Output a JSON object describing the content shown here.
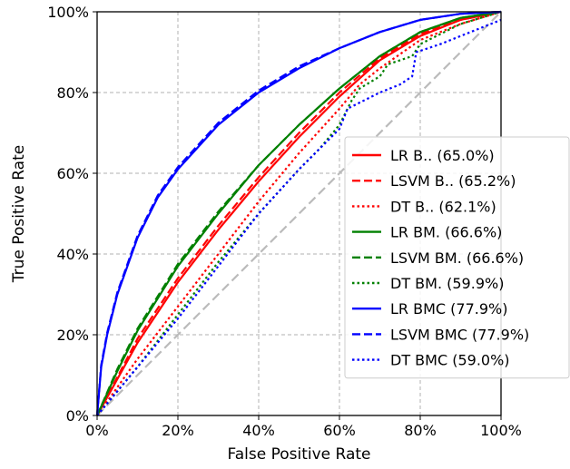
{
  "chart_data": {
    "type": "line",
    "title": "",
    "xlabel": "False Positive Rate",
    "ylabel": "True Positive Rate",
    "xlim": [
      0,
      100
    ],
    "ylim": [
      0,
      100
    ],
    "x_ticks": [
      "0%",
      "20%",
      "40%",
      "60%",
      "80%",
      "100%"
    ],
    "y_ticks": [
      "0%",
      "20%",
      "40%",
      "60%",
      "80%",
      "100%"
    ],
    "grid": true,
    "legend_position": "right",
    "diagonal": {
      "x": [
        0,
        100
      ],
      "y": [
        0,
        100
      ],
      "color": "#bbbbbb",
      "style": "dashed"
    },
    "series": [
      {
        "name": "LR B.. (65.0%)",
        "color": "#ff0000",
        "style": "solid",
        "x": [
          0,
          5,
          10,
          20,
          30,
          40,
          50,
          60,
          70,
          80,
          90,
          100
        ],
        "y": [
          0,
          9,
          18,
          33,
          46,
          58,
          69,
          79,
          88,
          94,
          98,
          100
        ]
      },
      {
        "name": "LSVM B.. (65.2%)",
        "color": "#ff0000",
        "style": "dashed",
        "x": [
          0,
          5,
          10,
          20,
          30,
          40,
          50,
          60,
          70,
          80,
          90,
          100
        ],
        "y": [
          0,
          9.5,
          19,
          34,
          47,
          59,
          70,
          80,
          88.5,
          94.5,
          98,
          100
        ]
      },
      {
        "name": "DT B.. (62.1%)",
        "color": "#ff0000",
        "style": "dotted",
        "x": [
          0,
          5,
          10,
          20,
          30,
          40,
          50,
          60,
          65,
          70,
          80,
          90,
          100
        ],
        "y": [
          0,
          7,
          14,
          27,
          40,
          53,
          65,
          76,
          82,
          86,
          93,
          97,
          100
        ]
      },
      {
        "name": "LR BM. (66.6%)",
        "color": "#008000",
        "style": "solid",
        "x": [
          0,
          5,
          10,
          20,
          30,
          40,
          50,
          60,
          70,
          80,
          90,
          100
        ],
        "y": [
          0,
          11,
          21,
          37,
          50,
          62,
          72,
          81,
          89,
          95,
          98.5,
          100
        ]
      },
      {
        "name": "LSVM BM. (66.6%)",
        "color": "#008000",
        "style": "dashed",
        "x": [
          0,
          5,
          10,
          20,
          30,
          40,
          50,
          60,
          70,
          80,
          90,
          100
        ],
        "y": [
          0,
          11.5,
          21.5,
          37.5,
          50.5,
          62,
          72,
          81,
          89,
          95,
          98.5,
          100
        ]
      },
      {
        "name": "DT BM. (59.9%)",
        "color": "#008000",
        "style": "dotted",
        "x": [
          0,
          5,
          10,
          20,
          30,
          40,
          50,
          55,
          60,
          63,
          65,
          70,
          72,
          75,
          78,
          80,
          90,
          100
        ],
        "y": [
          0,
          6,
          12,
          25,
          38,
          50,
          61,
          66,
          72,
          78,
          81,
          84,
          87,
          88,
          89,
          92,
          97,
          100
        ]
      },
      {
        "name": "LR BMC (77.9%)",
        "color": "#0000ff",
        "style": "solid",
        "x": [
          0,
          1,
          2.5,
          5,
          10,
          15,
          20,
          30,
          40,
          50,
          60,
          70,
          80,
          90,
          100
        ],
        "y": [
          0,
          12,
          20,
          30,
          44,
          54,
          61,
          72,
          80,
          86,
          91,
          95,
          98,
          99.5,
          100
        ]
      },
      {
        "name": "LSVM BMC (77.9%)",
        "color": "#0000ff",
        "style": "dashed",
        "x": [
          0,
          1,
          2.5,
          5,
          10,
          15,
          20,
          30,
          40,
          50,
          60,
          70,
          80,
          90,
          100
        ],
        "y": [
          0,
          12.5,
          20.5,
          30.5,
          44.5,
          54.5,
          61.5,
          72.5,
          80.5,
          86.5,
          91,
          95,
          98,
          99.5,
          100
        ]
      },
      {
        "name": "DT BMC (59.0%)",
        "color": "#0000ff",
        "style": "dotted",
        "x": [
          0,
          5,
          10,
          20,
          30,
          40,
          50,
          60,
          62,
          70,
          75,
          78,
          79,
          85,
          90,
          95,
          100
        ],
        "y": [
          0,
          6,
          12,
          24,
          37,
          50,
          61,
          71,
          76,
          80,
          82,
          84,
          90,
          92,
          94,
          96,
          98
        ]
      }
    ]
  }
}
